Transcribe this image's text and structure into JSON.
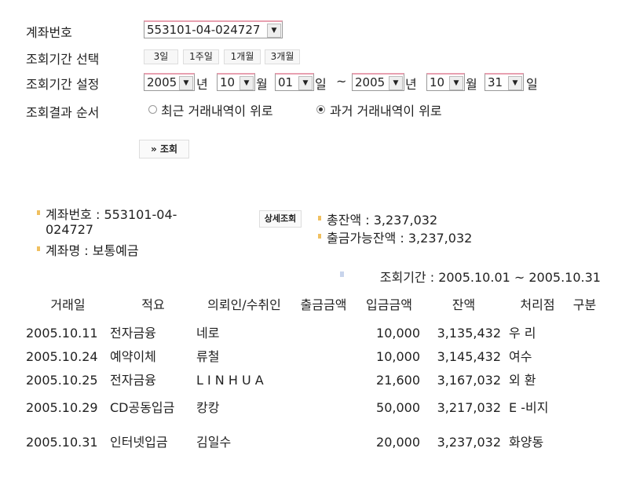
{
  "form": {
    "account_label": "계좌번호",
    "account_value": "553101-04-024727",
    "period_select_label": "조회기간 선택",
    "period_buttons": [
      "3일",
      "1주일",
      "1개월",
      "3개월"
    ],
    "period_set_label": "조회기간 설정",
    "from": {
      "year": "2005",
      "month": "10",
      "day": "01"
    },
    "to": {
      "year": "2005",
      "month": "10",
      "day": "31"
    },
    "unit_year": "년",
    "unit_month": "월",
    "unit_day": "일",
    "tilde": "~",
    "order_label": "조회결과 순서",
    "order_options": [
      {
        "label": "최근 거래내역이 위로",
        "selected": false
      },
      {
        "label": "과거 거래내역이 위로",
        "selected": true
      }
    ],
    "search_button": "» 조회"
  },
  "summary": {
    "account_line1": "계좌번호 : 553101-04-",
    "account_line2": "024727",
    "account_name": "계좌명 : 보통예금",
    "detail_button": "상세조회",
    "total_balance": "총잔액 : 3,237,032",
    "available_balance": "출금가능잔액 : 3,237,032",
    "period": "조회기간 : 2005.10.01 ~ 2005.10.31"
  },
  "table": {
    "headers": [
      "거래일",
      "적요",
      "의뢰인/수취인",
      "출금금액",
      "입금금액",
      "잔액",
      "처리점",
      "구분"
    ],
    "rows": [
      [
        "2005.10.11",
        "전자금융",
        "네로",
        "",
        "10,000",
        "3,135,432",
        "우 리",
        ""
      ],
      [
        "2005.10.24",
        "예약이체",
        "류철",
        "",
        "10,000",
        "3,145,432",
        "여수",
        ""
      ],
      [
        "2005.10.25",
        "전자금융",
        "L I N H U A",
        "",
        "21,600",
        "3,167,032",
        "외 환",
        ""
      ],
      [
        "2005.10.29",
        "CD공동입금",
        "캉캉",
        "",
        "50,000",
        "3,217,032",
        "E -비지",
        ""
      ],
      [
        "2005.10.31",
        "인터넷입금",
        "김일수",
        "",
        "20,000",
        "3,237,032",
        "화양동",
        ""
      ]
    ]
  },
  "colors": {
    "bullet": "#f0c060",
    "select_top": "#e8a0b0"
  }
}
